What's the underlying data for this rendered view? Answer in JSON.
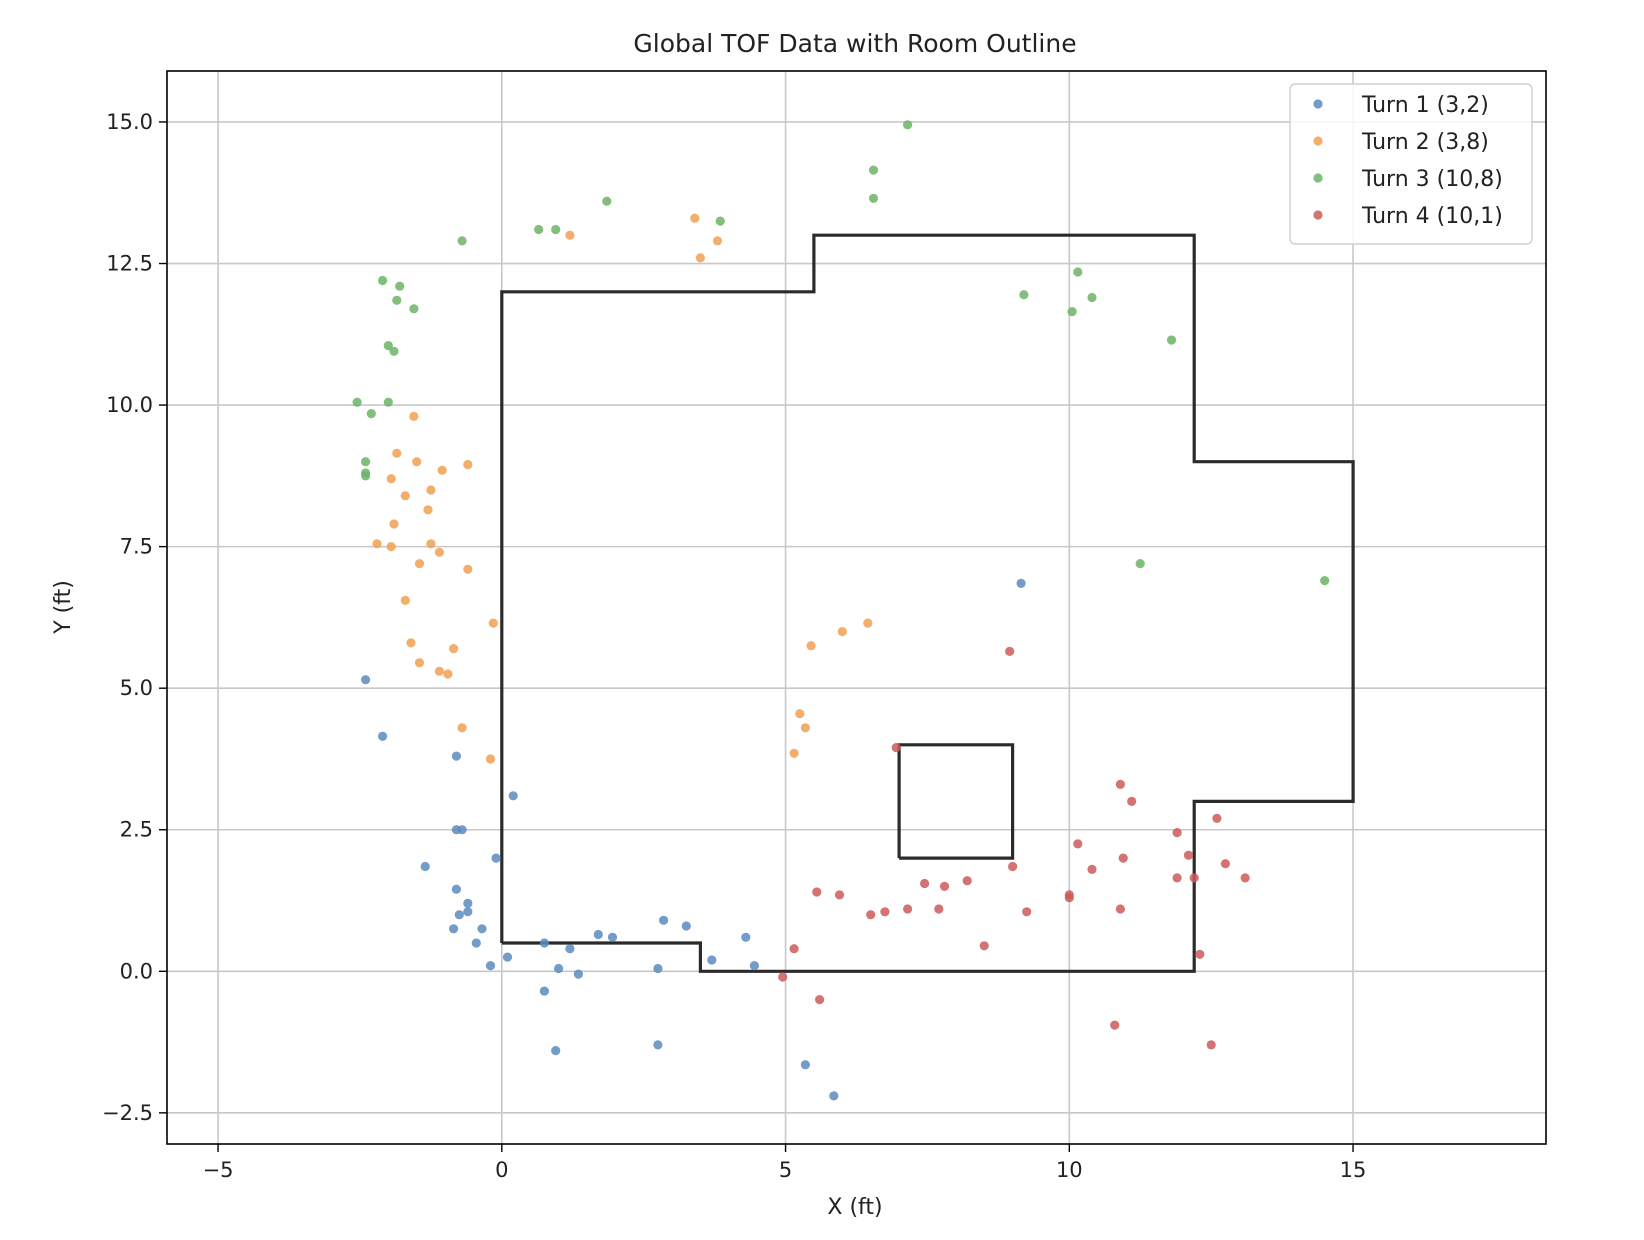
{
  "chart_data": {
    "type": "scatter",
    "title": "Global TOF Data with Room Outline",
    "xlabel": "X (ft)",
    "ylabel": "Y (ft)",
    "xlim": [
      -5.9,
      18.4
    ],
    "ylim": [
      -3.05,
      15.9
    ],
    "x_ticks": [
      -5,
      0,
      5,
      10,
      15
    ],
    "x_tick_labels": [
      "−5",
      "0",
      "5",
      "10",
      "15"
    ],
    "y_ticks": [
      -2.5,
      0,
      2.5,
      5,
      7.5,
      10,
      12.5,
      15
    ],
    "y_tick_labels": [
      "−2.5",
      "0.0",
      "2.5",
      "5.0",
      "7.5",
      "10.0",
      "12.5",
      "15.0"
    ],
    "grid": true,
    "legend_position": "top-right",
    "series": [
      {
        "name": "Turn 1 (3,2)",
        "color": "#5a8bc0",
        "points": [
          [
            -2.4,
            5.15
          ],
          [
            -2.1,
            4.15
          ],
          [
            -0.8,
            3.8
          ],
          [
            0.2,
            3.1
          ],
          [
            -0.8,
            2.5
          ],
          [
            -0.7,
            2.5
          ],
          [
            -0.1,
            2.0
          ],
          [
            -1.35,
            1.85
          ],
          [
            -0.8,
            1.45
          ],
          [
            -0.6,
            1.2
          ],
          [
            -0.6,
            1.05
          ],
          [
            -0.75,
            1.0
          ],
          [
            -0.35,
            0.75
          ],
          [
            -0.85,
            0.75
          ],
          [
            -0.45,
            0.5
          ],
          [
            0.75,
            0.5
          ],
          [
            1.7,
            0.65
          ],
          [
            1.95,
            0.6
          ],
          [
            2.85,
            0.9
          ],
          [
            3.25,
            0.8
          ],
          [
            4.3,
            0.6
          ],
          [
            1.2,
            0.4
          ],
          [
            3.7,
            0.2
          ],
          [
            4.45,
            0.1
          ],
          [
            0.1,
            0.25
          ],
          [
            -0.2,
            0.1
          ],
          [
            1.0,
            0.05
          ],
          [
            2.75,
            0.05
          ],
          [
            1.35,
            -0.05
          ],
          [
            0.75,
            -0.35
          ],
          [
            2.75,
            -1.3
          ],
          [
            0.95,
            -1.4
          ],
          [
            5.35,
            -1.65
          ],
          [
            5.85,
            -2.2
          ],
          [
            9.15,
            6.85
          ]
        ]
      },
      {
        "name": "Turn 2 (3,8)",
        "color": "#f0a050",
        "points": [
          [
            1.2,
            13.0
          ],
          [
            3.4,
            13.3
          ],
          [
            3.8,
            12.9
          ],
          [
            3.5,
            12.6
          ],
          [
            -1.55,
            9.8
          ],
          [
            -1.85,
            9.15
          ],
          [
            -1.5,
            9.0
          ],
          [
            -0.6,
            8.95
          ],
          [
            -1.05,
            8.85
          ],
          [
            -1.95,
            8.7
          ],
          [
            -1.25,
            8.5
          ],
          [
            -1.7,
            8.4
          ],
          [
            -1.3,
            8.15
          ],
          [
            -1.9,
            7.9
          ],
          [
            -2.2,
            7.55
          ],
          [
            -1.25,
            7.55
          ],
          [
            -1.95,
            7.5
          ],
          [
            -1.1,
            7.4
          ],
          [
            -1.45,
            7.2
          ],
          [
            -0.6,
            7.1
          ],
          [
            -1.7,
            6.55
          ],
          [
            -0.15,
            6.15
          ],
          [
            -1.6,
            5.8
          ],
          [
            -0.85,
            5.7
          ],
          [
            -1.45,
            5.45
          ],
          [
            -1.1,
            5.3
          ],
          [
            -0.95,
            5.25
          ],
          [
            -0.7,
            4.3
          ],
          [
            -0.2,
            3.75
          ],
          [
            5.45,
            5.75
          ],
          [
            6.0,
            6.0
          ],
          [
            6.45,
            6.15
          ],
          [
            5.25,
            4.55
          ],
          [
            5.35,
            4.3
          ],
          [
            5.15,
            3.85
          ]
        ]
      },
      {
        "name": "Turn 3 (10,8)",
        "color": "#6cb466",
        "points": [
          [
            7.15,
            14.95
          ],
          [
            6.55,
            14.15
          ],
          [
            6.55,
            13.65
          ],
          [
            1.85,
            13.6
          ],
          [
            0.65,
            13.1
          ],
          [
            0.95,
            13.1
          ],
          [
            3.85,
            13.25
          ],
          [
            -0.7,
            12.9
          ],
          [
            -2.1,
            12.2
          ],
          [
            -1.8,
            12.1
          ],
          [
            -1.85,
            11.85
          ],
          [
            -1.55,
            11.7
          ],
          [
            -2.0,
            11.05
          ],
          [
            -1.9,
            10.95
          ],
          [
            -2.55,
            10.05
          ],
          [
            -2.0,
            10.05
          ],
          [
            -2.3,
            9.85
          ],
          [
            -2.4,
            9.0
          ],
          [
            -2.4,
            8.8
          ],
          [
            -2.4,
            8.75
          ],
          [
            9.2,
            11.95
          ],
          [
            10.15,
            12.35
          ],
          [
            10.4,
            11.9
          ],
          [
            10.05,
            11.65
          ],
          [
            11.8,
            11.15
          ],
          [
            11.25,
            7.2
          ],
          [
            14.5,
            6.9
          ]
        ]
      },
      {
        "name": "Turn 4 (10,1)",
        "color": "#cc5a5a",
        "points": [
          [
            8.95,
            5.65
          ],
          [
            6.95,
            3.95
          ],
          [
            10.9,
            3.3
          ],
          [
            11.1,
            3.0
          ],
          [
            12.6,
            2.7
          ],
          [
            11.9,
            2.45
          ],
          [
            10.15,
            2.25
          ],
          [
            12.1,
            2.05
          ],
          [
            10.95,
            2.0
          ],
          [
            9.0,
            1.85
          ],
          [
            10.4,
            1.8
          ],
          [
            12.75,
            1.9
          ],
          [
            11.9,
            1.65
          ],
          [
            12.2,
            1.65
          ],
          [
            13.1,
            1.65
          ],
          [
            8.2,
            1.6
          ],
          [
            7.45,
            1.55
          ],
          [
            7.8,
            1.5
          ],
          [
            5.55,
            1.4
          ],
          [
            5.95,
            1.35
          ],
          [
            10.0,
            1.35
          ],
          [
            10.0,
            1.3
          ],
          [
            7.15,
            1.1
          ],
          [
            7.7,
            1.1
          ],
          [
            10.9,
            1.1
          ],
          [
            6.75,
            1.05
          ],
          [
            6.5,
            1.0
          ],
          [
            9.25,
            1.05
          ],
          [
            8.5,
            0.45
          ],
          [
            5.15,
            0.4
          ],
          [
            12.3,
            0.3
          ],
          [
            4.95,
            -0.1
          ],
          [
            5.6,
            -0.5
          ],
          [
            10.8,
            -0.95
          ],
          [
            12.5,
            -1.3
          ]
        ]
      }
    ],
    "outlines": [
      {
        "name": "room-outline",
        "points": [
          [
            0,
            0.5
          ],
          [
            0,
            12
          ],
          [
            5.5,
            12
          ],
          [
            5.5,
            13
          ],
          [
            12.2,
            13
          ],
          [
            12.2,
            9
          ],
          [
            15,
            9
          ],
          [
            15,
            3
          ],
          [
            12.2,
            3
          ],
          [
            12.2,
            0
          ],
          [
            3.5,
            0
          ],
          [
            3.5,
            0.5
          ],
          [
            0,
            0.5
          ]
        ]
      },
      {
        "name": "obstacle-outline",
        "points": [
          [
            7,
            2
          ],
          [
            7,
            4
          ],
          [
            9,
            4
          ],
          [
            9,
            2
          ],
          [
            7,
            2
          ]
        ]
      }
    ]
  }
}
